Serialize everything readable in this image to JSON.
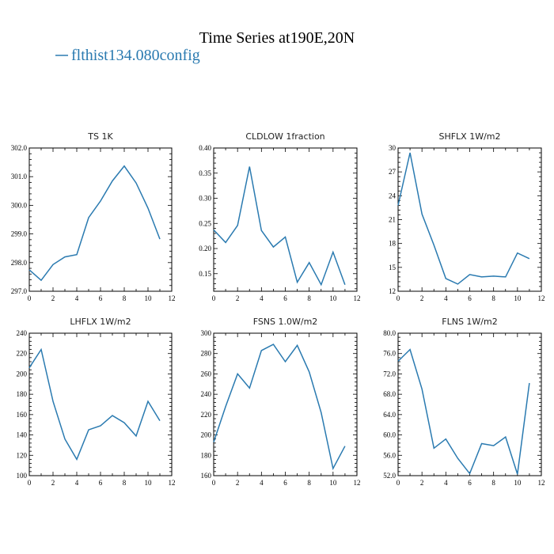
{
  "figure": {
    "title": "Time Series at190E,20N",
    "legend": {
      "label": "flthist134.080config",
      "color": "#2a7ab0"
    }
  },
  "chart_data": [
    {
      "type": "line",
      "title": "TS   1K",
      "x": [
        0,
        1,
        2,
        3,
        4,
        5,
        6,
        7,
        8,
        9,
        10,
        11
      ],
      "series": [
        {
          "values": [
            297.75,
            297.38,
            297.93,
            298.2,
            298.28,
            299.57,
            300.15,
            300.85,
            301.37,
            300.78,
            299.9,
            298.82
          ]
        }
      ],
      "xlim": [
        0,
        12
      ],
      "ylim": [
        297,
        302
      ],
      "xticks": [
        0,
        2,
        4,
        6,
        8,
        10,
        12
      ],
      "yticks": [
        297,
        298,
        299,
        300,
        301,
        302
      ],
      "ytick_labels": [
        "297.0",
        "298.0",
        "299.0",
        "300.0",
        "301.0",
        "302.0"
      ]
    },
    {
      "type": "line",
      "title": "CLDLOW   1fraction",
      "x": [
        0,
        1,
        2,
        3,
        4,
        5,
        6,
        7,
        8,
        9,
        10,
        11
      ],
      "series": [
        {
          "values": [
            0.237,
            0.212,
            0.246,
            0.363,
            0.236,
            0.203,
            0.223,
            0.133,
            0.172,
            0.128,
            0.193,
            0.128
          ]
        }
      ],
      "xlim": [
        0,
        12
      ],
      "ylim": [
        0.115,
        0.4
      ],
      "xticks": [
        0,
        2,
        4,
        6,
        8,
        10,
        12
      ],
      "yticks": [
        0.15,
        0.2,
        0.25,
        0.3,
        0.35,
        0.4
      ],
      "ytick_labels": [
        "0.15",
        "0.20",
        "0.25",
        "0.30",
        "0.35",
        "0.40"
      ]
    },
    {
      "type": "line",
      "title": "SHFLX   1W/m2",
      "x": [
        0,
        1,
        2,
        3,
        4,
        5,
        6,
        7,
        8,
        9,
        10,
        11
      ],
      "series": [
        {
          "values": [
            22.8,
            29.4,
            21.7,
            17.8,
            13.6,
            12.9,
            14.1,
            13.8,
            13.9,
            13.8,
            16.8,
            16.1
          ]
        }
      ],
      "xlim": [
        0,
        12
      ],
      "ylim": [
        12,
        30
      ],
      "xticks": [
        0,
        2,
        4,
        6,
        8,
        10,
        12
      ],
      "yticks": [
        12,
        15,
        18,
        21,
        24,
        27,
        30
      ],
      "ytick_labels": [
        "12",
        "15",
        "18",
        "21",
        "24",
        "27",
        "30"
      ]
    },
    {
      "type": "line",
      "title": "LHFLX   1W/m2",
      "x": [
        0,
        1,
        2,
        3,
        4,
        5,
        6,
        7,
        8,
        9,
        10,
        11
      ],
      "series": [
        {
          "values": [
            206,
            224,
            173,
            136,
            116,
            145,
            149,
            159,
            152,
            139,
            173,
            154
          ]
        }
      ],
      "xlim": [
        0,
        12
      ],
      "ylim": [
        100,
        240
      ],
      "xticks": [
        0,
        2,
        4,
        6,
        8,
        10,
        12
      ],
      "yticks": [
        100,
        120,
        140,
        160,
        180,
        200,
        220,
        240
      ],
      "ytick_labels": [
        "100",
        "120",
        "140",
        "160",
        "180",
        "200",
        "220",
        "240"
      ]
    },
    {
      "type": "line",
      "title": "FSNS   1.0W/m2",
      "x": [
        0,
        1,
        2,
        3,
        4,
        5,
        6,
        7,
        8,
        9,
        10,
        11
      ],
      "series": [
        {
          "values": [
            193,
            228,
            260,
            246,
            283,
            289,
            272,
            288,
            262,
            222,
            167,
            189
          ]
        }
      ],
      "xlim": [
        0,
        12
      ],
      "ylim": [
        160,
        300
      ],
      "xticks": [
        0,
        2,
        4,
        6,
        8,
        10,
        12
      ],
      "yticks": [
        160,
        180,
        200,
        220,
        240,
        260,
        280,
        300
      ],
      "ytick_labels": [
        "160",
        "180",
        "200",
        "220",
        "240",
        "260",
        "280",
        "300"
      ]
    },
    {
      "type": "line",
      "title": "FLNS   1W/m2",
      "x": [
        0,
        1,
        2,
        3,
        4,
        5,
        6,
        7,
        8,
        9,
        10,
        11
      ],
      "series": [
        {
          "values": [
            74.5,
            76.8,
            69.0,
            57.4,
            59.2,
            55.4,
            52.4,
            58.3,
            57.9,
            59.6,
            52.3,
            70.2
          ]
        }
      ],
      "xlim": [
        0,
        12
      ],
      "ylim": [
        52,
        80
      ],
      "xticks": [
        0,
        2,
        4,
        6,
        8,
        10,
        12
      ],
      "yticks": [
        52,
        56,
        60,
        64,
        68,
        72,
        76,
        80
      ],
      "ytick_labels": [
        "52.0",
        "56.0",
        "60.0",
        "64.0",
        "68.0",
        "72.0",
        "76.0",
        "80.0"
      ]
    }
  ]
}
